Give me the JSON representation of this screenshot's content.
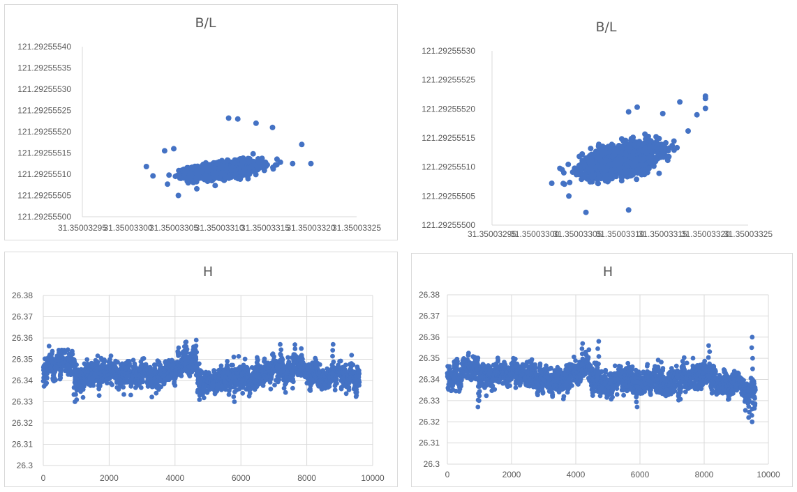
{
  "colors": {
    "series": "#4472c4",
    "axis": "#d9d9d9",
    "text": "#595959"
  },
  "chart_data": [
    {
      "type": "scatter",
      "title": "B/L",
      "xlabel": "",
      "ylabel": "",
      "grid": false,
      "xlim": [
        31.35003295,
        31.35003325
      ],
      "ylim": [
        121.292555,
        121.2925554
      ],
      "x_ticks": [
        "31.35003295",
        "31.35003300",
        "31.35003305",
        "31.35003310",
        "31.35003315",
        "31.35003320",
        "31.35003325"
      ],
      "y_ticks": [
        "121.29255500",
        "121.29255505",
        "121.29255510",
        "121.29255515",
        "121.29255520",
        "121.29255525",
        "121.29255530",
        "121.29255535",
        "121.29255540"
      ],
      "cluster": {
        "x_center": 31.350033105,
        "y_center": 121.29255511,
        "x_spread": 3.5e-08,
        "y_spread": 2e-08
      },
      "outliers": [
        {
          "x": 31.35003302,
          "y": 121.292555118
        },
        {
          "x": 31.35003304,
          "y": 121.292555155
        },
        {
          "x": 31.35003305,
          "y": 121.29255516
        },
        {
          "x": 31.350033055,
          "y": 121.29255505
        },
        {
          "x": 31.35003311,
          "y": 121.292555232
        },
        {
          "x": 31.35003312,
          "y": 121.29255523
        },
        {
          "x": 31.35003314,
          "y": 121.29255522
        },
        {
          "x": 31.350033158,
          "y": 121.29255521
        },
        {
          "x": 31.35003318,
          "y": 121.292555125
        },
        {
          "x": 31.35003319,
          "y": 121.29255517
        },
        {
          "x": 31.3500332,
          "y": 121.292555125
        }
      ]
    },
    {
      "type": "scatter",
      "title": "B/L",
      "xlabel": "",
      "ylabel": "",
      "grid": false,
      "xlim": [
        31.35003295,
        31.35003325
      ],
      "ylim": [
        121.292555,
        121.2925553
      ],
      "x_ticks": [
        "31.35003295",
        "31.35003300",
        "31.35003305",
        "31.35003310",
        "31.35003315",
        "31.35003320",
        "31.35003325"
      ],
      "y_ticks": [
        "121.29255500",
        "121.29255505",
        "121.29255510",
        "121.29255515",
        "121.29255520",
        "121.29255525",
        "121.29255530"
      ],
      "cluster": {
        "x_center": 31.3500331,
        "y_center": 121.292555112,
        "x_spread": 4e-08,
        "y_spread": 2.8e-08
      },
      "outliers": [
        {
          "x": 31.35003302,
          "y": 121.292555072
        },
        {
          "x": 31.35003304,
          "y": 121.29255505
        },
        {
          "x": 31.35003306,
          "y": 121.292555022
        },
        {
          "x": 31.35003311,
          "y": 121.292555026
        },
        {
          "x": 31.35003311,
          "y": 121.292555195
        },
        {
          "x": 31.35003312,
          "y": 121.292555203
        },
        {
          "x": 31.35003315,
          "y": 121.292555192
        },
        {
          "x": 31.35003317,
          "y": 121.292555212
        },
        {
          "x": 31.3500332,
          "y": 121.292555218
        },
        {
          "x": 31.35003319,
          "y": 121.29255519
        },
        {
          "x": 31.3500332,
          "y": 121.292555201
        },
        {
          "x": 31.3500332,
          "y": 121.292555222
        }
      ]
    },
    {
      "type": "scatter",
      "title": "H",
      "xlabel": "",
      "ylabel": "",
      "grid": true,
      "xlim": [
        0,
        10000
      ],
      "ylim": [
        26.3,
        26.38
      ],
      "x_ticks": [
        "0",
        "2000",
        "4000",
        "6000",
        "8000",
        "10000"
      ],
      "y_ticks": [
        "26.3",
        "26.31",
        "26.32",
        "26.33",
        "26.34",
        "26.35",
        "26.36",
        "26.37",
        "26.38"
      ],
      "n_points": 9600,
      "trend": [
        [
          0,
          26.344
        ],
        [
          500,
          26.348
        ],
        [
          900,
          26.349
        ],
        [
          1000,
          26.342
        ],
        [
          1500,
          26.343
        ],
        [
          2000,
          26.345
        ],
        [
          2500,
          26.342
        ],
        [
          3000,
          26.344
        ],
        [
          3500,
          26.342
        ],
        [
          4000,
          26.346
        ],
        [
          4300,
          26.348
        ],
        [
          4600,
          26.347
        ],
        [
          4800,
          26.339
        ],
        [
          5500,
          26.341
        ],
        [
          6000,
          26.342
        ],
        [
          6500,
          26.343
        ],
        [
          7000,
          26.344
        ],
        [
          7500,
          26.345
        ],
        [
          8000,
          26.346
        ],
        [
          8500,
          26.342
        ],
        [
          9000,
          26.344
        ],
        [
          9600,
          26.339
        ]
      ],
      "spikes": [
        [
          950,
          26.33
        ],
        [
          1000,
          26.331
        ],
        [
          4300,
          26.358
        ],
        [
          4650,
          26.359
        ],
        [
          4750,
          26.331
        ],
        [
          5800,
          26.33
        ],
        [
          7200,
          26.357
        ],
        [
          8800,
          26.357
        ],
        [
          9500,
          26.333
        ]
      ]
    },
    {
      "type": "scatter",
      "title": "H",
      "xlabel": "",
      "ylabel": "",
      "grid": true,
      "xlim": [
        0,
        10000
      ],
      "ylim": [
        26.3,
        26.38
      ],
      "x_ticks": [
        "0",
        "2000",
        "4000",
        "6000",
        "8000",
        "10000"
      ],
      "y_ticks": [
        "26.3",
        "26.31",
        "26.32",
        "26.33",
        "26.34",
        "26.35",
        "26.36",
        "26.37",
        "26.38"
      ],
      "n_points": 9600,
      "trend": [
        [
          0,
          26.341
        ],
        [
          500,
          26.345
        ],
        [
          900,
          26.347
        ],
        [
          1000,
          26.341
        ],
        [
          1500,
          26.343
        ],
        [
          2000,
          26.343
        ],
        [
          2500,
          26.341
        ],
        [
          3000,
          26.341
        ],
        [
          3500,
          26.338
        ],
        [
          4000,
          26.342
        ],
        [
          4300,
          26.346
        ],
        [
          4800,
          26.339
        ],
        [
          5500,
          26.338
        ],
        [
          6000,
          26.339
        ],
        [
          6500,
          26.339
        ],
        [
          7000,
          26.34
        ],
        [
          7500,
          26.341
        ],
        [
          8000,
          26.343
        ],
        [
          8500,
          26.339
        ],
        [
          9000,
          26.338
        ],
        [
          9300,
          26.335
        ],
        [
          9600,
          26.335
        ]
      ],
      "spikes": [
        [
          950,
          26.327
        ],
        [
          1000,
          26.33
        ],
        [
          4200,
          26.357
        ],
        [
          4700,
          26.358
        ],
        [
          5900,
          26.327
        ],
        [
          8150,
          26.356
        ],
        [
          9400,
          26.322
        ],
        [
          9500,
          26.32
        ],
        [
          9500,
          26.36
        ]
      ]
    }
  ]
}
